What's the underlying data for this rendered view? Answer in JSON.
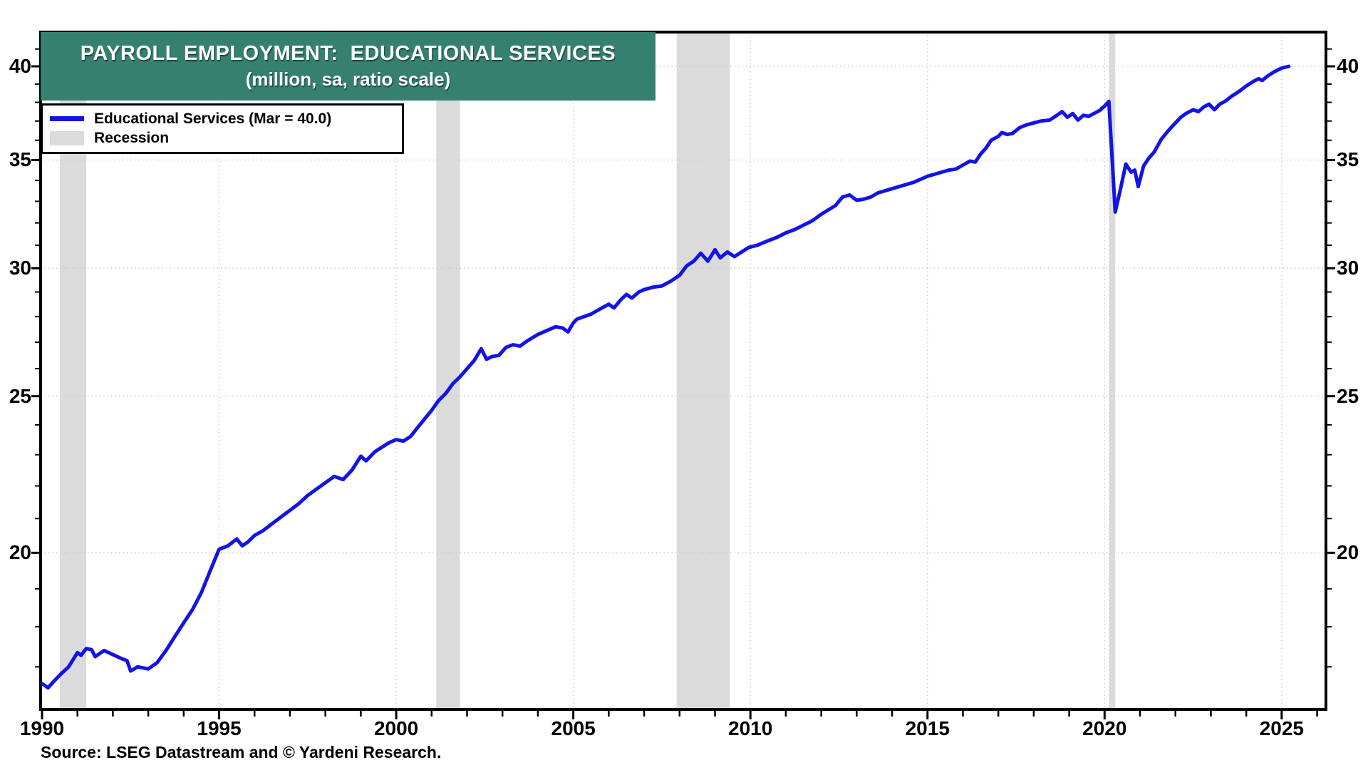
{
  "title": {
    "line1": "PAYROLL EMPLOYMENT:  EDUCATIONAL SERVICES",
    "line2": "(million, sa, ratio scale)"
  },
  "legend": {
    "series_label": "Educational Services (Mar = 40.0)",
    "recession_label": "Recession"
  },
  "source": "Source: LSEG Datastream and © Yardeni Research.",
  "colors": {
    "line": "#1413e6",
    "title_bg": "#35806f",
    "recession": "#dbdbdb",
    "grid": "#cccccc",
    "frame": "#000000",
    "text": "#000000"
  },
  "chart_data": {
    "type": "line",
    "title": "PAYROLL EMPLOYMENT:  EDUCATIONAL SERVICES",
    "subtitle": "(million, sa, ratio scale)",
    "ylabel": "million, sa, ratio scale",
    "y_scale": "log",
    "y_range": [
      16,
      42
    ],
    "y_ticks_major": [
      20,
      25,
      30,
      35,
      40
    ],
    "y_ticks_minor_step": 1,
    "x_range": [
      1989.96,
      2026.25
    ],
    "x_ticks_labeled": [
      1990,
      1995,
      2000,
      2005,
      2010,
      2015,
      2020,
      2025
    ],
    "x_tick_step": 1,
    "grid": "dotted at labeled ticks",
    "legend_position": "top-left",
    "recessions": [
      [
        1990.5,
        1991.25
      ],
      [
        2001.13,
        2001.8
      ],
      [
        2007.92,
        2009.42
      ],
      [
        2020.12,
        2020.3
      ]
    ],
    "series": [
      {
        "name": "Educational Services (Mar = 40.0)",
        "points": [
          [
            1990.0,
            16.6
          ],
          [
            1990.17,
            16.5
          ],
          [
            1990.33,
            16.65
          ],
          [
            1990.5,
            16.8
          ],
          [
            1990.75,
            17.0
          ],
          [
            1991.0,
            17.35
          ],
          [
            1991.1,
            17.28
          ],
          [
            1991.25,
            17.45
          ],
          [
            1991.4,
            17.42
          ],
          [
            1991.5,
            17.25
          ],
          [
            1991.75,
            17.4
          ],
          [
            1992.0,
            17.3
          ],
          [
            1992.25,
            17.2
          ],
          [
            1992.4,
            17.15
          ],
          [
            1992.5,
            16.9
          ],
          [
            1992.7,
            17.0
          ],
          [
            1993.0,
            16.95
          ],
          [
            1993.25,
            17.1
          ],
          [
            1993.5,
            17.4
          ],
          [
            1993.75,
            17.75
          ],
          [
            1994.0,
            18.1
          ],
          [
            1994.25,
            18.45
          ],
          [
            1994.5,
            18.9
          ],
          [
            1994.75,
            19.5
          ],
          [
            1995.0,
            20.1
          ],
          [
            1995.25,
            20.2
          ],
          [
            1995.5,
            20.4
          ],
          [
            1995.65,
            20.2
          ],
          [
            1995.8,
            20.3
          ],
          [
            1996.0,
            20.5
          ],
          [
            1996.25,
            20.65
          ],
          [
            1996.5,
            20.85
          ],
          [
            1996.75,
            21.05
          ],
          [
            1997.0,
            21.25
          ],
          [
            1997.25,
            21.45
          ],
          [
            1997.5,
            21.7
          ],
          [
            1997.75,
            21.9
          ],
          [
            1998.0,
            22.1
          ],
          [
            1998.25,
            22.3
          ],
          [
            1998.5,
            22.2
          ],
          [
            1998.75,
            22.5
          ],
          [
            1999.0,
            22.95
          ],
          [
            1999.15,
            22.8
          ],
          [
            1999.4,
            23.1
          ],
          [
            1999.6,
            23.25
          ],
          [
            1999.8,
            23.4
          ],
          [
            2000.0,
            23.5
          ],
          [
            2000.2,
            23.45
          ],
          [
            2000.4,
            23.6
          ],
          [
            2000.6,
            23.9
          ],
          [
            2000.8,
            24.2
          ],
          [
            2001.0,
            24.5
          ],
          [
            2001.2,
            24.85
          ],
          [
            2001.4,
            25.1
          ],
          [
            2001.6,
            25.45
          ],
          [
            2001.8,
            25.7
          ],
          [
            2002.0,
            26.0
          ],
          [
            2002.2,
            26.3
          ],
          [
            2002.4,
            26.75
          ],
          [
            2002.55,
            26.35
          ],
          [
            2002.7,
            26.45
          ],
          [
            2002.9,
            26.5
          ],
          [
            2003.1,
            26.8
          ],
          [
            2003.3,
            26.9
          ],
          [
            2003.5,
            26.85
          ],
          [
            2003.7,
            27.05
          ],
          [
            2004.0,
            27.3
          ],
          [
            2004.25,
            27.45
          ],
          [
            2004.5,
            27.6
          ],
          [
            2004.7,
            27.55
          ],
          [
            2004.85,
            27.4
          ],
          [
            2005.0,
            27.75
          ],
          [
            2005.1,
            27.9
          ],
          [
            2005.3,
            28.0
          ],
          [
            2005.5,
            28.1
          ],
          [
            2005.75,
            28.3
          ],
          [
            2006.0,
            28.5
          ],
          [
            2006.15,
            28.35
          ],
          [
            2006.35,
            28.7
          ],
          [
            2006.5,
            28.9
          ],
          [
            2006.65,
            28.75
          ],
          [
            2006.85,
            29.0
          ],
          [
            2007.0,
            29.1
          ],
          [
            2007.25,
            29.2
          ],
          [
            2007.5,
            29.25
          ],
          [
            2007.75,
            29.45
          ],
          [
            2008.0,
            29.7
          ],
          [
            2008.2,
            30.1
          ],
          [
            2008.4,
            30.3
          ],
          [
            2008.6,
            30.65
          ],
          [
            2008.8,
            30.3
          ],
          [
            2009.0,
            30.8
          ],
          [
            2009.15,
            30.45
          ],
          [
            2009.35,
            30.7
          ],
          [
            2009.55,
            30.5
          ],
          [
            2009.75,
            30.7
          ],
          [
            2009.95,
            30.9
          ],
          [
            2010.2,
            31.0
          ],
          [
            2010.5,
            31.2
          ],
          [
            2010.75,
            31.35
          ],
          [
            2011.0,
            31.55
          ],
          [
            2011.25,
            31.7
          ],
          [
            2011.5,
            31.9
          ],
          [
            2011.75,
            32.1
          ],
          [
            2012.0,
            32.4
          ],
          [
            2012.2,
            32.6
          ],
          [
            2012.4,
            32.8
          ],
          [
            2012.6,
            33.2
          ],
          [
            2012.8,
            33.3
          ],
          [
            2013.0,
            33.05
          ],
          [
            2013.2,
            33.1
          ],
          [
            2013.4,
            33.2
          ],
          [
            2013.6,
            33.4
          ],
          [
            2013.8,
            33.5
          ],
          [
            2014.0,
            33.6
          ],
          [
            2014.2,
            33.7
          ],
          [
            2014.4,
            33.8
          ],
          [
            2014.6,
            33.9
          ],
          [
            2014.8,
            34.05
          ],
          [
            2015.0,
            34.2
          ],
          [
            2015.2,
            34.3
          ],
          [
            2015.4,
            34.4
          ],
          [
            2015.6,
            34.5
          ],
          [
            2015.8,
            34.55
          ],
          [
            2016.0,
            34.75
          ],
          [
            2016.2,
            34.95
          ],
          [
            2016.35,
            34.9
          ],
          [
            2016.5,
            35.3
          ],
          [
            2016.65,
            35.6
          ],
          [
            2016.8,
            36.0
          ],
          [
            2017.0,
            36.2
          ],
          [
            2017.1,
            36.4
          ],
          [
            2017.25,
            36.3
          ],
          [
            2017.4,
            36.35
          ],
          [
            2017.6,
            36.65
          ],
          [
            2017.8,
            36.8
          ],
          [
            2018.0,
            36.9
          ],
          [
            2018.2,
            37.0
          ],
          [
            2018.45,
            37.05
          ],
          [
            2018.65,
            37.3
          ],
          [
            2018.8,
            37.5
          ],
          [
            2018.95,
            37.2
          ],
          [
            2019.1,
            37.4
          ],
          [
            2019.25,
            37.05
          ],
          [
            2019.4,
            37.3
          ],
          [
            2019.55,
            37.25
          ],
          [
            2019.7,
            37.4
          ],
          [
            2019.85,
            37.55
          ],
          [
            2020.0,
            37.8
          ],
          [
            2020.12,
            38.05
          ],
          [
            2020.3,
            32.5
          ],
          [
            2020.45,
            33.6
          ],
          [
            2020.6,
            34.8
          ],
          [
            2020.75,
            34.4
          ],
          [
            2020.85,
            34.5
          ],
          [
            2020.95,
            33.7
          ],
          [
            2021.1,
            34.7
          ],
          [
            2021.25,
            35.1
          ],
          [
            2021.4,
            35.4
          ],
          [
            2021.6,
            36.05
          ],
          [
            2021.8,
            36.5
          ],
          [
            2022.0,
            36.9
          ],
          [
            2022.15,
            37.2
          ],
          [
            2022.3,
            37.4
          ],
          [
            2022.5,
            37.6
          ],
          [
            2022.65,
            37.5
          ],
          [
            2022.8,
            37.75
          ],
          [
            2022.95,
            37.9
          ],
          [
            2023.1,
            37.6
          ],
          [
            2023.25,
            37.9
          ],
          [
            2023.4,
            38.05
          ],
          [
            2023.6,
            38.35
          ],
          [
            2023.8,
            38.6
          ],
          [
            2024.0,
            38.9
          ],
          [
            2024.2,
            39.15
          ],
          [
            2024.35,
            39.3
          ],
          [
            2024.45,
            39.2
          ],
          [
            2024.6,
            39.45
          ],
          [
            2024.8,
            39.7
          ],
          [
            2025.0,
            39.9
          ],
          [
            2025.2,
            40.0
          ]
        ]
      }
    ]
  }
}
